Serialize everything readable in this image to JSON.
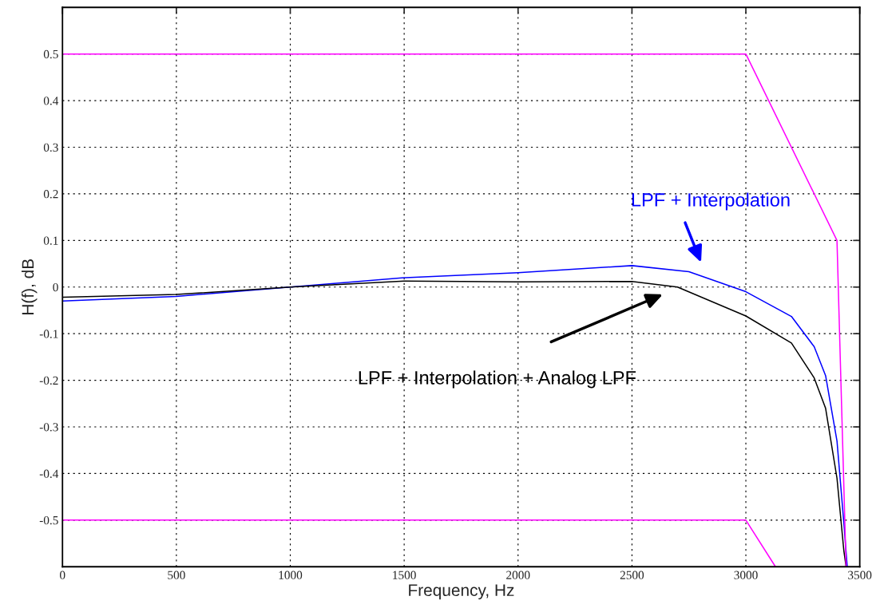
{
  "chart_data": {
    "type": "line",
    "xlabel": "Frequency, Hz",
    "ylabel": "H(f), dB",
    "xlim": [
      0,
      3500
    ],
    "ylim": [
      -0.6,
      0.6
    ],
    "xticks": [
      0,
      500,
      1000,
      1500,
      2000,
      2500,
      3000,
      3500
    ],
    "yticks": [
      -0.5,
      -0.4,
      -0.3,
      -0.2,
      -0.1,
      0,
      0.1,
      0.2,
      0.3,
      0.4,
      0.5
    ],
    "grid": true,
    "line_style": "solid",
    "marker": "none",
    "series": [
      {
        "color": "#0000ff",
        "x": [
          0,
          500,
          1000,
          1500,
          2000,
          2500,
          2750,
          3000,
          3200,
          3300,
          3350,
          3400,
          3430,
          3445
        ],
        "values": [
          -0.03,
          -0.02,
          0,
          0.02,
          0.031,
          0.046,
          0.033,
          -0.01,
          -0.063,
          -0.128,
          -0.19,
          -0.33,
          -0.505,
          -0.6
        ]
      },
      {
        "color": "#000000",
        "x": [
          0,
          500,
          1000,
          1500,
          2000,
          2500,
          2700,
          3000,
          3200,
          3300,
          3350,
          3400,
          3430,
          3440
        ],
        "values": [
          -0.022,
          -0.016,
          0,
          0.013,
          0.011,
          0.012,
          0.0,
          -0.062,
          -0.12,
          -0.195,
          -0.26,
          -0.41,
          -0.565,
          -0.6
        ]
      },
      {
        "color": "#ff00ff",
        "x": [
          0,
          3000,
          3400,
          3440
        ],
        "values": [
          0.5,
          0.5,
          0.1,
          -0.6
        ]
      },
      {
        "color": "#ff00ff",
        "x": [
          0,
          3000,
          3130
        ],
        "values": [
          -0.5,
          -0.5,
          -0.6
        ]
      }
    ],
    "annotations": [
      "LPF + Interpolation",
      "LPF + Interpolation + Analog LPF"
    ]
  }
}
